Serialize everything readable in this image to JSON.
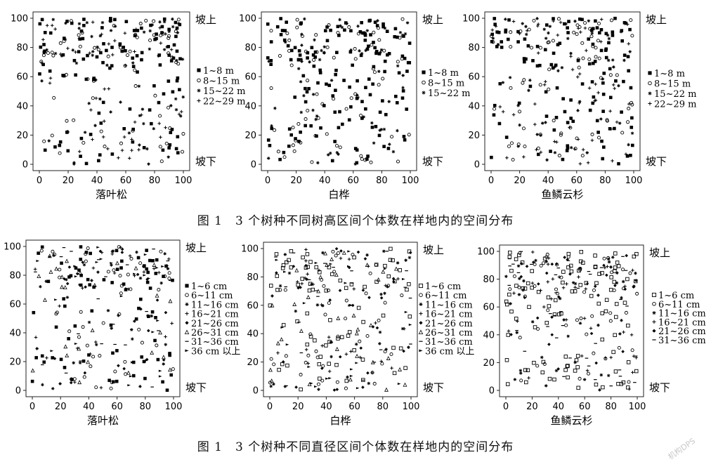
{
  "figure": {
    "caption_top": "图 1　3 个树种不同树高区间个体数在样地内的空间分布",
    "caption_bottom": "图 1　3 个树种不同直径区间个体数在样地内的空间分布",
    "watermark": "机构DPS"
  },
  "chart_data": [
    {
      "type": "scatter",
      "xlabel": "落叶松",
      "xlim": [
        0,
        100
      ],
      "ylim": [
        0,
        100
      ],
      "xticks": [
        0,
        20,
        40,
        60,
        80,
        100
      ],
      "yticks": [
        0,
        20,
        40,
        60,
        80,
        100
      ],
      "slope_top": "坡上",
      "slope_bottom": "坡下",
      "legend": [
        "1~8 m",
        "8~15 m",
        "15~22 m",
        "22~29 m"
      ],
      "markers": [
        "square",
        "circle",
        "star",
        "plus"
      ]
    },
    {
      "type": "scatter",
      "xlabel": "白桦",
      "xlim": [
        0,
        100
      ],
      "ylim": [
        0,
        100
      ],
      "xticks": [
        0,
        20,
        40,
        60,
        80,
        100
      ],
      "yticks": [
        0,
        20,
        40,
        60,
        80,
        100
      ],
      "slope_top": "坡上",
      "slope_bottom": "坡下",
      "legend": [
        "1~8 m",
        "8~15 m",
        "15~22 m"
      ],
      "markers": [
        "square",
        "circle",
        "star"
      ]
    },
    {
      "type": "scatter",
      "xlabel": "鱼鳞云杉",
      "xlim": [
        0,
        100
      ],
      "ylim": [
        0,
        100
      ],
      "xticks": [
        0,
        20,
        40,
        60,
        80,
        100
      ],
      "yticks": [
        0,
        20,
        40,
        60,
        80,
        100
      ],
      "slope_top": "坡上",
      "slope_bottom": "坡下",
      "legend": [
        "1~8 m",
        "8~15 m",
        "15~22 m",
        "22~29 m"
      ],
      "markers": [
        "square",
        "circle",
        "star",
        "plus"
      ]
    },
    {
      "type": "scatter",
      "xlabel": "落叶松",
      "xlim": [
        0,
        100
      ],
      "ylim": [
        0,
        100
      ],
      "xticks": [
        0,
        20,
        40,
        60,
        80,
        100
      ],
      "yticks": [
        0,
        20,
        40,
        60,
        80,
        100
      ],
      "slope_top": "坡上",
      "slope_bottom": "坡下",
      "legend": [
        "1~6 cm",
        "6~11 cm",
        "11~16 cm",
        "16~21 cm",
        "21~26 cm",
        "26~31 cm",
        "31~36 cm",
        "36 cm 以上"
      ],
      "markers": [
        "square",
        "circle",
        "star",
        "plus",
        "diamond",
        "tri",
        "dash",
        "arrow"
      ]
    },
    {
      "type": "scatter",
      "xlabel": "白桦",
      "xlim": [
        0,
        100
      ],
      "ylim": [
        0,
        100
      ],
      "xticks": [
        0,
        20,
        40,
        60,
        80,
        100
      ],
      "yticks": [
        0,
        20,
        40,
        60,
        80,
        100
      ],
      "slope_top": "坡上",
      "slope_bottom": "坡下",
      "legend": [
        "1~6 cm",
        "6~11 cm",
        "11~16 cm",
        "16~21 cm",
        "21~26 cm",
        "26~31 cm",
        "31~36 cm",
        "36 cm 以上"
      ],
      "markers": [
        "hsquare",
        "circle",
        "star",
        "plus",
        "diamond",
        "tri",
        "dash",
        "arrow"
      ]
    },
    {
      "type": "scatter",
      "xlabel": "鱼鳞云杉",
      "xlim": [
        0,
        100
      ],
      "ylim": [
        0,
        100
      ],
      "xticks": [
        0,
        20,
        40,
        60,
        80,
        100
      ],
      "yticks": [
        0,
        20,
        40,
        60,
        80,
        100
      ],
      "slope_top": "坡上",
      "slope_bottom": "坡下",
      "legend": [
        "1~6 cm",
        "6~11 cm",
        "11~16 cm",
        "16~21 cm",
        "21~26 cm",
        "31~36 cm"
      ],
      "markers": [
        "hsquare",
        "circle",
        "star",
        "plus",
        "diamond",
        "dash"
      ]
    }
  ]
}
